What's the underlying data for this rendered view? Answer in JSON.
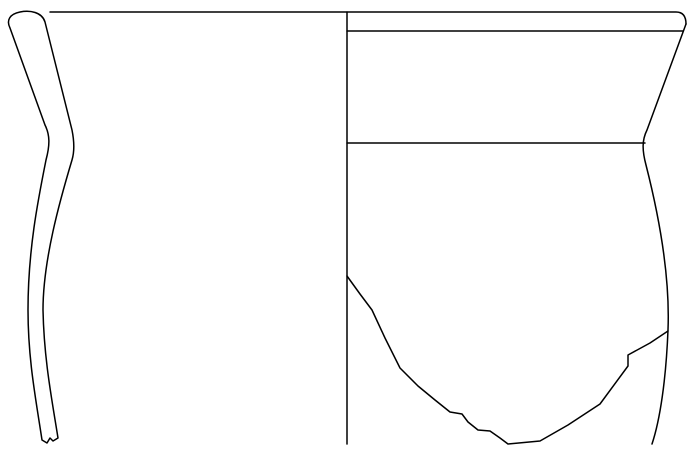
{
  "drawing": {
    "subject": "vessel-profile",
    "colors": {
      "stroke": "#000000",
      "background": "#ffffff"
    }
  }
}
